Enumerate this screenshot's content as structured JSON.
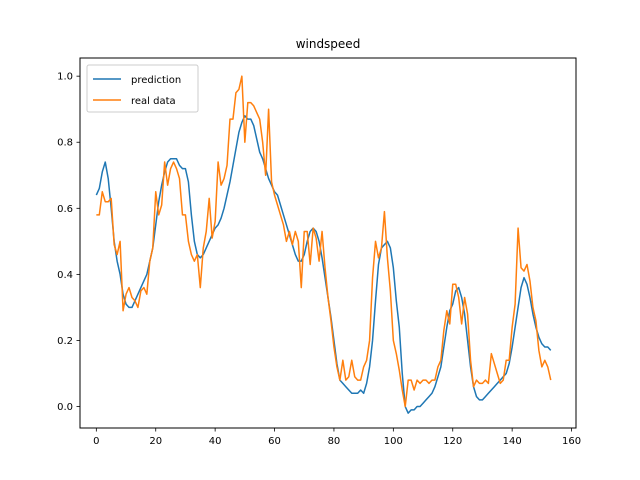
{
  "chart_data": {
    "type": "line",
    "title": "windspeed",
    "xlabel": "",
    "ylabel": "",
    "xlim": [
      -5.5,
      161.5
    ],
    "ylim": [
      -0.065,
      1.055
    ],
    "xticks": [
      0,
      20,
      40,
      60,
      80,
      100,
      120,
      140,
      160
    ],
    "xtick_labels": [
      "0",
      "20",
      "40",
      "60",
      "80",
      "100",
      "120",
      "140",
      "160"
    ],
    "yticks": [
      0.0,
      0.2,
      0.4,
      0.6,
      0.8,
      1.0
    ],
    "ytick_labels": [
      "0.0",
      "0.2",
      "0.4",
      "0.6",
      "0.8",
      "1.0"
    ],
    "grid": false,
    "legend_position": "top-left",
    "series": [
      {
        "name": "prediction",
        "color": "#1f77b4",
        "points": [
          [
            0,
            0.64
          ],
          [
            1,
            0.66
          ],
          [
            2,
            0.71
          ],
          [
            3,
            0.74
          ],
          [
            4,
            0.69
          ],
          [
            5,
            0.6
          ],
          [
            6,
            0.5
          ],
          [
            7,
            0.44
          ],
          [
            8,
            0.4
          ],
          [
            9,
            0.34
          ],
          [
            10,
            0.31
          ],
          [
            11,
            0.3
          ],
          [
            12,
            0.3
          ],
          [
            13,
            0.32
          ],
          [
            14,
            0.34
          ],
          [
            15,
            0.36
          ],
          [
            16,
            0.38
          ],
          [
            17,
            0.4
          ],
          [
            18,
            0.44
          ],
          [
            19,
            0.48
          ],
          [
            20,
            0.55
          ],
          [
            21,
            0.62
          ],
          [
            22,
            0.67
          ],
          [
            23,
            0.71
          ],
          [
            24,
            0.74
          ],
          [
            25,
            0.75
          ],
          [
            26,
            0.75
          ],
          [
            27,
            0.75
          ],
          [
            28,
            0.73
          ],
          [
            29,
            0.72
          ],
          [
            30,
            0.72
          ],
          [
            31,
            0.68
          ],
          [
            32,
            0.58
          ],
          [
            33,
            0.5
          ],
          [
            34,
            0.46
          ],
          [
            35,
            0.45
          ],
          [
            36,
            0.46
          ],
          [
            37,
            0.48
          ],
          [
            38,
            0.5
          ],
          [
            39,
            0.52
          ],
          [
            40,
            0.54
          ],
          [
            41,
            0.55
          ],
          [
            42,
            0.57
          ],
          [
            43,
            0.6
          ],
          [
            44,
            0.64
          ],
          [
            45,
            0.68
          ],
          [
            46,
            0.73
          ],
          [
            47,
            0.78
          ],
          [
            48,
            0.83
          ],
          [
            49,
            0.86
          ],
          [
            50,
            0.88
          ],
          [
            51,
            0.87
          ],
          [
            52,
            0.87
          ],
          [
            53,
            0.85
          ],
          [
            54,
            0.81
          ],
          [
            55,
            0.77
          ],
          [
            56,
            0.75
          ],
          [
            57,
            0.72
          ],
          [
            58,
            0.69
          ],
          [
            59,
            0.67
          ],
          [
            60,
            0.65
          ],
          [
            61,
            0.64
          ],
          [
            62,
            0.61
          ],
          [
            63,
            0.58
          ],
          [
            64,
            0.55
          ],
          [
            65,
            0.52
          ],
          [
            66,
            0.49
          ],
          [
            67,
            0.46
          ],
          [
            68,
            0.44
          ],
          [
            69,
            0.44
          ],
          [
            70,
            0.46
          ],
          [
            71,
            0.5
          ],
          [
            72,
            0.53
          ],
          [
            73,
            0.54
          ],
          [
            74,
            0.53
          ],
          [
            75,
            0.5
          ],
          [
            76,
            0.45
          ],
          [
            77,
            0.39
          ],
          [
            78,
            0.33
          ],
          [
            79,
            0.27
          ],
          [
            80,
            0.2
          ],
          [
            81,
            0.13
          ],
          [
            82,
            0.08
          ],
          [
            83,
            0.07
          ],
          [
            84,
            0.06
          ],
          [
            85,
            0.05
          ],
          [
            86,
            0.04
          ],
          [
            87,
            0.04
          ],
          [
            88,
            0.04
          ],
          [
            89,
            0.05
          ],
          [
            90,
            0.04
          ],
          [
            91,
            0.07
          ],
          [
            92,
            0.12
          ],
          [
            93,
            0.2
          ],
          [
            94,
            0.32
          ],
          [
            95,
            0.43
          ],
          [
            96,
            0.48
          ],
          [
            97,
            0.49
          ],
          [
            98,
            0.5
          ],
          [
            99,
            0.48
          ],
          [
            100,
            0.42
          ],
          [
            101,
            0.32
          ],
          [
            102,
            0.24
          ],
          [
            103,
            0.1
          ],
          [
            104,
            0.0
          ],
          [
            105,
            -0.02
          ],
          [
            106,
            -0.01
          ],
          [
            107,
            -0.01
          ],
          [
            108,
            0.0
          ],
          [
            109,
            0.0
          ],
          [
            110,
            0.01
          ],
          [
            111,
            0.02
          ],
          [
            112,
            0.03
          ],
          [
            113,
            0.04
          ],
          [
            114,
            0.06
          ],
          [
            115,
            0.09
          ],
          [
            116,
            0.12
          ],
          [
            117,
            0.18
          ],
          [
            118,
            0.24
          ],
          [
            119,
            0.29
          ],
          [
            120,
            0.31
          ],
          [
            121,
            0.35
          ],
          [
            122,
            0.36
          ],
          [
            123,
            0.33
          ],
          [
            124,
            0.28
          ],
          [
            125,
            0.2
          ],
          [
            126,
            0.12
          ],
          [
            127,
            0.06
          ],
          [
            128,
            0.03
          ],
          [
            129,
            0.02
          ],
          [
            130,
            0.02
          ],
          [
            131,
            0.03
          ],
          [
            132,
            0.04
          ],
          [
            133,
            0.05
          ],
          [
            134,
            0.06
          ],
          [
            135,
            0.07
          ],
          [
            136,
            0.08
          ],
          [
            137,
            0.09
          ],
          [
            138,
            0.1
          ],
          [
            139,
            0.13
          ],
          [
            140,
            0.18
          ],
          [
            141,
            0.24
          ],
          [
            142,
            0.3
          ],
          [
            143,
            0.36
          ],
          [
            144,
            0.39
          ],
          [
            145,
            0.37
          ],
          [
            146,
            0.33
          ],
          [
            147,
            0.28
          ],
          [
            148,
            0.24
          ],
          [
            149,
            0.21
          ],
          [
            150,
            0.19
          ],
          [
            151,
            0.18
          ],
          [
            152,
            0.18
          ],
          [
            153,
            0.17
          ]
        ]
      },
      {
        "name": "real data",
        "color": "#ff7f0e",
        "points": [
          [
            0,
            0.58
          ],
          [
            1,
            0.58
          ],
          [
            2,
            0.65
          ],
          [
            3,
            0.62
          ],
          [
            4,
            0.62
          ],
          [
            5,
            0.63
          ],
          [
            6,
            0.49
          ],
          [
            7,
            0.46
          ],
          [
            8,
            0.5
          ],
          [
            9,
            0.29
          ],
          [
            10,
            0.34
          ],
          [
            11,
            0.36
          ],
          [
            12,
            0.33
          ],
          [
            13,
            0.32
          ],
          [
            14,
            0.3
          ],
          [
            15,
            0.35
          ],
          [
            16,
            0.36
          ],
          [
            17,
            0.34
          ],
          [
            18,
            0.44
          ],
          [
            19,
            0.48
          ],
          [
            20,
            0.65
          ],
          [
            21,
            0.58
          ],
          [
            22,
            0.61
          ],
          [
            23,
            0.74
          ],
          [
            24,
            0.67
          ],
          [
            25,
            0.72
          ],
          [
            26,
            0.74
          ],
          [
            27,
            0.72
          ],
          [
            28,
            0.69
          ],
          [
            29,
            0.58
          ],
          [
            30,
            0.58
          ],
          [
            31,
            0.5
          ],
          [
            32,
            0.46
          ],
          [
            33,
            0.44
          ],
          [
            34,
            0.46
          ],
          [
            35,
            0.36
          ],
          [
            36,
            0.48
          ],
          [
            37,
            0.53
          ],
          [
            38,
            0.63
          ],
          [
            39,
            0.51
          ],
          [
            40,
            0.56
          ],
          [
            41,
            0.74
          ],
          [
            42,
            0.67
          ],
          [
            43,
            0.69
          ],
          [
            44,
            0.73
          ],
          [
            45,
            0.87
          ],
          [
            46,
            0.87
          ],
          [
            47,
            0.95
          ],
          [
            48,
            0.96
          ],
          [
            49,
            1.0
          ],
          [
            50,
            0.8
          ],
          [
            51,
            0.92
          ],
          [
            52,
            0.92
          ],
          [
            53,
            0.91
          ],
          [
            54,
            0.89
          ],
          [
            55,
            0.87
          ],
          [
            56,
            0.8
          ],
          [
            57,
            0.7
          ],
          [
            58,
            0.9
          ],
          [
            59,
            0.68
          ],
          [
            60,
            0.64
          ],
          [
            61,
            0.61
          ],
          [
            62,
            0.58
          ],
          [
            63,
            0.55
          ],
          [
            64,
            0.5
          ],
          [
            65,
            0.53
          ],
          [
            66,
            0.49
          ],
          [
            67,
            0.53
          ],
          [
            68,
            0.5
          ],
          [
            69,
            0.36
          ],
          [
            70,
            0.53
          ],
          [
            71,
            0.53
          ],
          [
            72,
            0.43
          ],
          [
            73,
            0.54
          ],
          [
            74,
            0.51
          ],
          [
            75,
            0.44
          ],
          [
            76,
            0.53
          ],
          [
            77,
            0.42
          ],
          [
            78,
            0.33
          ],
          [
            79,
            0.26
          ],
          [
            80,
            0.18
          ],
          [
            81,
            0.12
          ],
          [
            82,
            0.08
          ],
          [
            83,
            0.14
          ],
          [
            84,
            0.08
          ],
          [
            85,
            0.09
          ],
          [
            86,
            0.14
          ],
          [
            87,
            0.09
          ],
          [
            88,
            0.08
          ],
          [
            89,
            0.08
          ],
          [
            90,
            0.12
          ],
          [
            91,
            0.14
          ],
          [
            92,
            0.2
          ],
          [
            93,
            0.39
          ],
          [
            94,
            0.5
          ],
          [
            95,
            0.45
          ],
          [
            96,
            0.48
          ],
          [
            97,
            0.59
          ],
          [
            98,
            0.45
          ],
          [
            99,
            0.35
          ],
          [
            100,
            0.2
          ],
          [
            101,
            0.16
          ],
          [
            102,
            0.11
          ],
          [
            103,
            0.05
          ],
          [
            104,
            0.0
          ],
          [
            105,
            0.08
          ],
          [
            106,
            0.08
          ],
          [
            107,
            0.05
          ],
          [
            108,
            0.08
          ],
          [
            109,
            0.07
          ],
          [
            110,
            0.08
          ],
          [
            111,
            0.08
          ],
          [
            112,
            0.07
          ],
          [
            113,
            0.08
          ],
          [
            114,
            0.08
          ],
          [
            115,
            0.12
          ],
          [
            116,
            0.14
          ],
          [
            117,
            0.23
          ],
          [
            118,
            0.29
          ],
          [
            119,
            0.25
          ],
          [
            120,
            0.37
          ],
          [
            121,
            0.37
          ],
          [
            122,
            0.33
          ],
          [
            123,
            0.25
          ],
          [
            124,
            0.33
          ],
          [
            125,
            0.28
          ],
          [
            126,
            0.14
          ],
          [
            127,
            0.06
          ],
          [
            128,
            0.08
          ],
          [
            129,
            0.07
          ],
          [
            130,
            0.07
          ],
          [
            131,
            0.08
          ],
          [
            132,
            0.07
          ],
          [
            133,
            0.16
          ],
          [
            134,
            0.13
          ],
          [
            135,
            0.1
          ],
          [
            136,
            0.07
          ],
          [
            137,
            0.08
          ],
          [
            138,
            0.14
          ],
          [
            139,
            0.14
          ],
          [
            140,
            0.24
          ],
          [
            141,
            0.31
          ],
          [
            142,
            0.54
          ],
          [
            143,
            0.42
          ],
          [
            144,
            0.41
          ],
          [
            145,
            0.43
          ],
          [
            146,
            0.38
          ],
          [
            147,
            0.3
          ],
          [
            148,
            0.26
          ],
          [
            149,
            0.17
          ],
          [
            150,
            0.12
          ],
          [
            151,
            0.14
          ],
          [
            152,
            0.12
          ],
          [
            153,
            0.08
          ]
        ]
      }
    ]
  }
}
